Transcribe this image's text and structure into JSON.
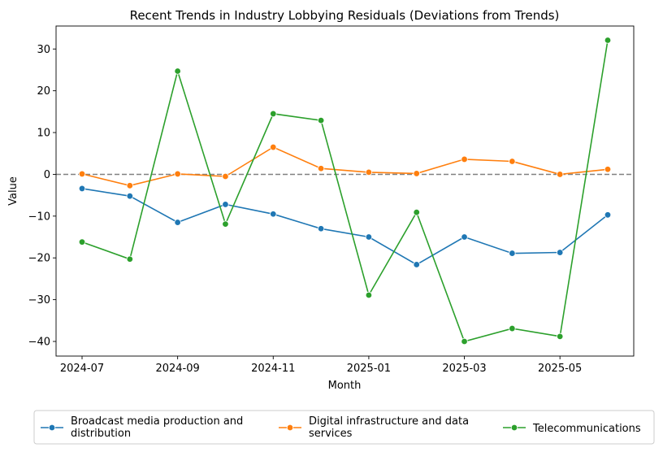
{
  "chart_data": {
    "type": "line",
    "title": "Recent Trends in Industry Lobbying Residuals (Deviations from Trends)",
    "xlabel": "Month",
    "ylabel": "Value",
    "x": [
      "2024-07",
      "2024-08",
      "2024-09",
      "2024-10",
      "2024-11",
      "2024-12",
      "2025-01",
      "2025-02",
      "2025-03",
      "2025-04",
      "2025-05",
      "2025-06"
    ],
    "xticks": [
      "2024-07",
      "2024-09",
      "2024-11",
      "2025-01",
      "2025-03",
      "2025-05"
    ],
    "ylim": [
      -43.5,
      35.5
    ],
    "yticks": [
      -40,
      -30,
      -20,
      -10,
      0,
      10,
      20,
      30
    ],
    "reference_line": {
      "y": 0,
      "style": "dashed",
      "color": "#808080"
    },
    "legend_placement": "bottom-center",
    "grid": false,
    "series": [
      {
        "name": "Broadcast media production and distribution",
        "color": "#1f77b4",
        "values": [
          -3.4,
          -5.2,
          -11.5,
          -7.2,
          -9.5,
          -13.0,
          -15.0,
          -21.6,
          -15.0,
          -18.9,
          -18.7,
          -9.7
        ]
      },
      {
        "name": "Digital infrastructure and data services",
        "color": "#ff7f0e",
        "values": [
          0.1,
          -2.7,
          0.1,
          -0.5,
          6.5,
          1.4,
          0.5,
          0.2,
          3.6,
          3.1,
          0.0,
          1.2
        ]
      },
      {
        "name": "Telecommunications",
        "color": "#2ca02c",
        "values": [
          -16.2,
          -20.3,
          24.7,
          -11.9,
          14.5,
          12.9,
          -28.9,
          -9.1,
          -40.0,
          -36.9,
          -38.8,
          32.1
        ]
      }
    ]
  }
}
